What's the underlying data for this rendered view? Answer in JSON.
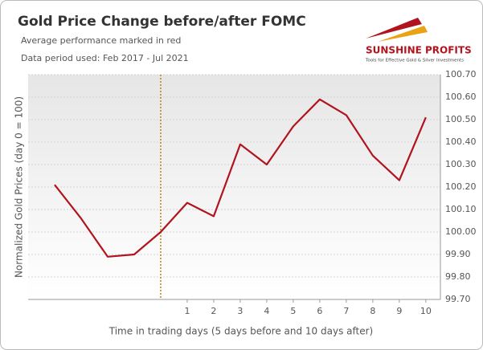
{
  "chart_data": {
    "type": "line",
    "title": "Gold Price Change before/after FOMC",
    "subtitle": "Average performance marked in red",
    "note": "Data period used: Feb 2017 - Jul 2021",
    "logo": {
      "name": "SUNSHINE PROFITS",
      "tagline": "Tools for Effective Gold & Silver Investments"
    },
    "x_label": "Time in trading days  (5 days before and 10 days after)",
    "y_label": "Normalized Gold Prices (day 0 = 100)",
    "categories": [
      null,
      null,
      null,
      null,
      null,
      "1",
      "2",
      "3",
      "4",
      "5",
      "6",
      "7",
      "8",
      "9",
      "10"
    ],
    "series": [
      {
        "name": "Average performance",
        "color": "#b0141e",
        "values": [
          100.21,
          100.06,
          99.89,
          99.9,
          100.0,
          100.13,
          100.07,
          100.39,
          100.3,
          100.47,
          100.59,
          100.52,
          100.34,
          100.23,
          100.51
        ]
      }
    ],
    "marker_index": 4,
    "marker_color": "#b8860b",
    "ylim": [
      99.7,
      100.7
    ],
    "yticks": [
      {
        "value": 99.7,
        "label": "99.70"
      },
      {
        "value": 99.8,
        "label": "99.80"
      },
      {
        "value": 99.9,
        "label": "99.90"
      },
      {
        "value": 100.0,
        "label": "100.00"
      },
      {
        "value": 100.1,
        "label": "100.10"
      },
      {
        "value": 100.2,
        "label": "100.20"
      },
      {
        "value": 100.3,
        "label": "100.30"
      },
      {
        "value": 100.4,
        "label": "100.40"
      },
      {
        "value": 100.5,
        "label": "100.50"
      },
      {
        "value": 100.6,
        "label": "100.60"
      },
      {
        "value": 100.7,
        "label": "100.70"
      }
    ],
    "grid": true
  }
}
